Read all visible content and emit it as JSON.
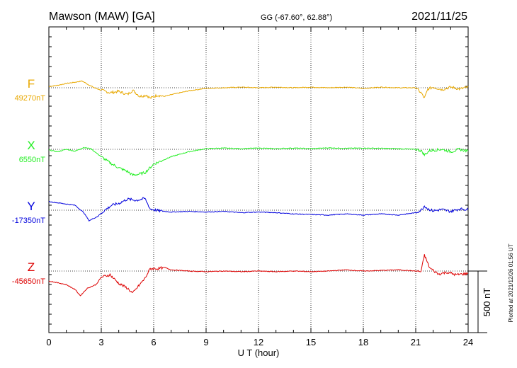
{
  "header": {
    "station": "Mawson (MAW)  [GA]",
    "coords": "GG (-67.60°,  62.88°)",
    "date": "2021/11/25"
  },
  "chart_data": {
    "type": "line",
    "xlabel": "U T (hour)",
    "xlim": [
      0,
      24
    ],
    "xticks": [
      "0",
      "3",
      "6",
      "9",
      "12",
      "15",
      "18",
      "21",
      "24"
    ],
    "scale_label": "500 nT",
    "plotted_note": "Plotted at 2021/12/26 01:56 UT",
    "series": [
      {
        "name": "F",
        "baseline": "49270nT",
        "color": "#e8a800",
        "points": [
          [
            0,
            10
          ],
          [
            0.5,
            20
          ],
          [
            1,
            35
          ],
          [
            1.5,
            45
          ],
          [
            1.9,
            55
          ],
          [
            2.2,
            30
          ],
          [
            2.6,
            0
          ],
          [
            3,
            -20
          ],
          [
            3.5,
            -40
          ],
          [
            4,
            -30
          ],
          [
            4.5,
            -55
          ],
          [
            4.8,
            -20
          ],
          [
            5.2,
            -70
          ],
          [
            5.6,
            -60
          ],
          [
            5.8,
            -85
          ],
          [
            6.2,
            -60
          ],
          [
            6.6,
            -70
          ],
          [
            7.2,
            -50
          ],
          [
            8,
            -25
          ],
          [
            9,
            -5
          ],
          [
            10,
            0
          ],
          [
            11,
            5
          ],
          [
            12,
            0
          ],
          [
            13,
            5
          ],
          [
            14,
            0
          ],
          [
            15,
            5
          ],
          [
            16,
            0
          ],
          [
            17,
            5
          ],
          [
            18,
            -5
          ],
          [
            19,
            5
          ],
          [
            20,
            0
          ],
          [
            21,
            0
          ],
          [
            21.3,
            -40
          ],
          [
            21.5,
            -85
          ],
          [
            21.7,
            -10
          ],
          [
            22,
            5
          ],
          [
            22.5,
            -15
          ],
          [
            23,
            5
          ],
          [
            23.5,
            -10
          ],
          [
            24,
            5
          ]
        ]
      },
      {
        "name": "X",
        "baseline": "6550nT",
        "color": "#22ee22",
        "points": [
          [
            0,
            -5
          ],
          [
            0.5,
            -20
          ],
          [
            1,
            0
          ],
          [
            1.5,
            -15
          ],
          [
            2,
            15
          ],
          [
            2.4,
            5
          ],
          [
            3,
            -60
          ],
          [
            3.5,
            -110
          ],
          [
            4,
            -150
          ],
          [
            4.5,
            -180
          ],
          [
            4.8,
            -210
          ],
          [
            5.2,
            -200
          ],
          [
            5.5,
            -190
          ],
          [
            6,
            -120
          ],
          [
            7,
            -60
          ],
          [
            8,
            -20
          ],
          [
            9,
            5
          ],
          [
            10,
            10
          ],
          [
            11,
            5
          ],
          [
            12,
            10
          ],
          [
            13,
            5
          ],
          [
            14,
            10
          ],
          [
            15,
            5
          ],
          [
            16,
            12
          ],
          [
            17,
            8
          ],
          [
            18,
            10
          ],
          [
            19,
            8
          ],
          [
            20,
            5
          ],
          [
            21,
            0
          ],
          [
            21.3,
            -10
          ],
          [
            21.5,
            -45
          ],
          [
            21.8,
            -10
          ],
          [
            22.5,
            0
          ],
          [
            23,
            -20
          ],
          [
            23.5,
            0
          ],
          [
            24,
            -15
          ]
        ]
      },
      {
        "name": "Y",
        "baseline": "-17350nT",
        "color": "#0000dd",
        "points": [
          [
            0,
            70
          ],
          [
            0.5,
            60
          ],
          [
            1,
            50
          ],
          [
            1.5,
            40
          ],
          [
            2,
            -20
          ],
          [
            2.3,
            -85
          ],
          [
            2.8,
            -50
          ],
          [
            3.2,
            0
          ],
          [
            3.6,
            40
          ],
          [
            4,
            55
          ],
          [
            4.5,
            90
          ],
          [
            5,
            80
          ],
          [
            5.5,
            95
          ],
          [
            5.8,
            10
          ],
          [
            6.3,
            -5
          ],
          [
            7,
            -15
          ],
          [
            8,
            -10
          ],
          [
            9,
            -15
          ],
          [
            10,
            -10
          ],
          [
            11,
            -20
          ],
          [
            12,
            -15
          ],
          [
            13,
            -20
          ],
          [
            14,
            -30
          ],
          [
            15,
            -35
          ],
          [
            16,
            -40
          ],
          [
            17,
            -30
          ],
          [
            18,
            -40
          ],
          [
            19,
            -30
          ],
          [
            20,
            -40
          ],
          [
            21,
            -20
          ],
          [
            21.3,
            0
          ],
          [
            21.5,
            35
          ],
          [
            21.7,
            10
          ],
          [
            22,
            -5
          ],
          [
            22.5,
            5
          ],
          [
            23,
            -10
          ],
          [
            23.5,
            10
          ],
          [
            24,
            5
          ]
        ]
      },
      {
        "name": "Z",
        "baseline": "-45650nT",
        "color": "#dd0000",
        "points": [
          [
            0,
            -80
          ],
          [
            0.5,
            -95
          ],
          [
            1,
            -110
          ],
          [
            1.5,
            -150
          ],
          [
            1.8,
            -200
          ],
          [
            2.2,
            -140
          ],
          [
            2.7,
            -110
          ],
          [
            3,
            -50
          ],
          [
            3.5,
            -30
          ],
          [
            4,
            -100
          ],
          [
            4.5,
            -140
          ],
          [
            4.8,
            -180
          ],
          [
            5.2,
            -110
          ],
          [
            5.5,
            -60
          ],
          [
            5.8,
            20
          ],
          [
            6.3,
            20
          ],
          [
            6.6,
            30
          ],
          [
            7,
            10
          ],
          [
            8,
            0
          ],
          [
            9,
            -5
          ],
          [
            10,
            0
          ],
          [
            11,
            -5
          ],
          [
            12,
            0
          ],
          [
            13,
            -5
          ],
          [
            14,
            0
          ],
          [
            15,
            -5
          ],
          [
            16,
            0
          ],
          [
            17,
            10
          ],
          [
            18,
            0
          ],
          [
            19,
            5
          ],
          [
            20,
            10
          ],
          [
            21,
            0
          ],
          [
            21.3,
            -5
          ],
          [
            21.5,
            130
          ],
          [
            21.8,
            25
          ],
          [
            22.3,
            -25
          ],
          [
            22.8,
            -10
          ],
          [
            23.3,
            -30
          ],
          [
            24,
            -20
          ]
        ]
      }
    ]
  }
}
